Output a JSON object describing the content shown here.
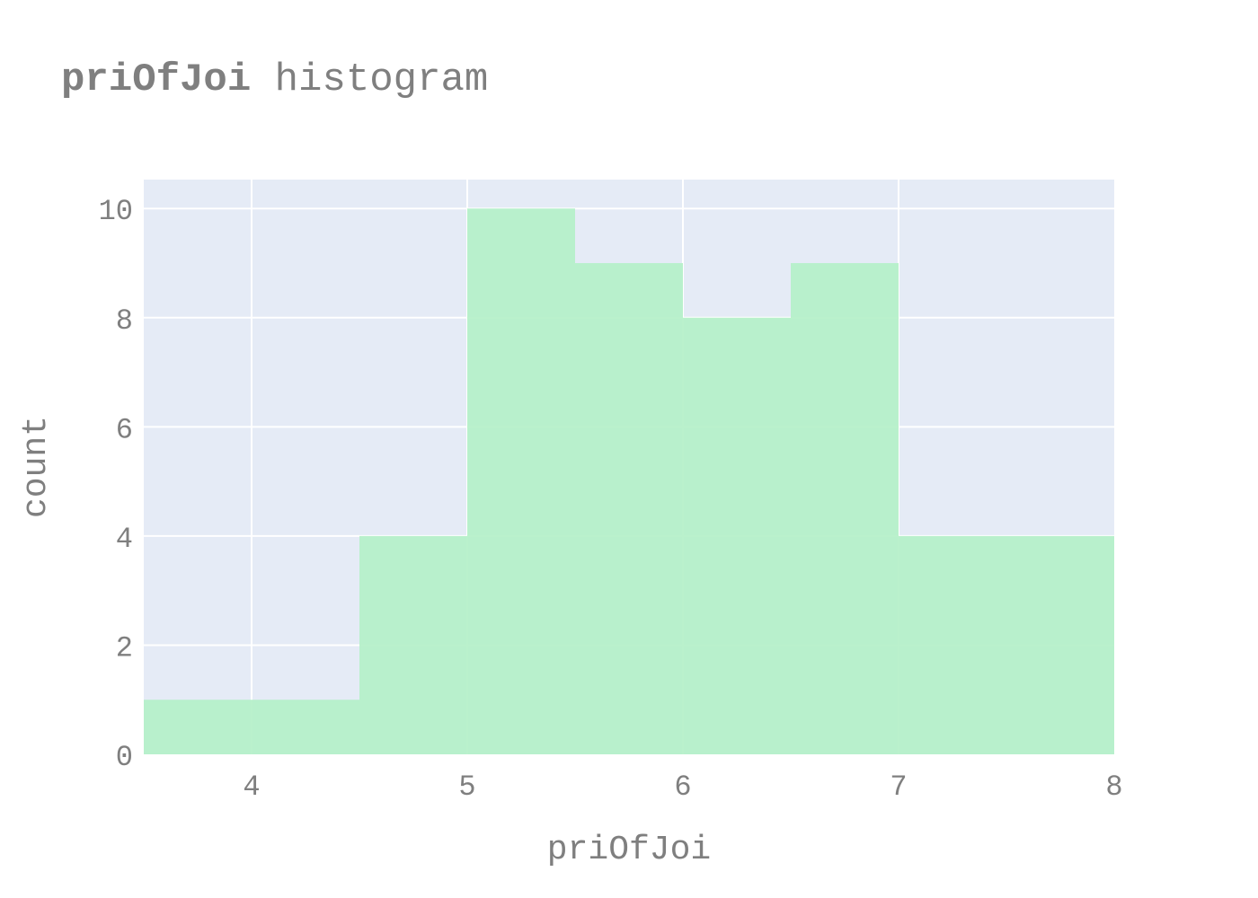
{
  "chart_data": {
    "type": "bar",
    "subtype": "histogram",
    "title_bold": "priOfJoi",
    "title_rest": " histogram",
    "xlabel": "priOfJoi",
    "ylabel": "count",
    "bins": [
      {
        "x0": 3.5,
        "x1": 4.0,
        "count": 1
      },
      {
        "x0": 4.0,
        "x1": 4.5,
        "count": 1
      },
      {
        "x0": 4.5,
        "x1": 5.0,
        "count": 4
      },
      {
        "x0": 5.0,
        "x1": 5.5,
        "count": 10
      },
      {
        "x0": 5.5,
        "x1": 6.0,
        "count": 9
      },
      {
        "x0": 6.0,
        "x1": 6.5,
        "count": 8
      },
      {
        "x0": 6.5,
        "x1": 7.0,
        "count": 9
      },
      {
        "x0": 7.0,
        "x1": 7.5,
        "count": 4
      },
      {
        "x0": 7.5,
        "x1": 8.0,
        "count": 4
      }
    ],
    "xlim": [
      3.5,
      8.0
    ],
    "ylim": [
      0,
      10.53
    ],
    "xticks": [
      4,
      5,
      6,
      7,
      8
    ],
    "yticks": [
      0,
      2,
      4,
      6,
      8,
      10
    ],
    "grid": true,
    "legend": "none",
    "colors": {
      "bar_fill": "#b4f0c8",
      "plot_background": "#e5ebf6",
      "gridline": "#ffffff",
      "text": "#7f7f7f"
    }
  }
}
